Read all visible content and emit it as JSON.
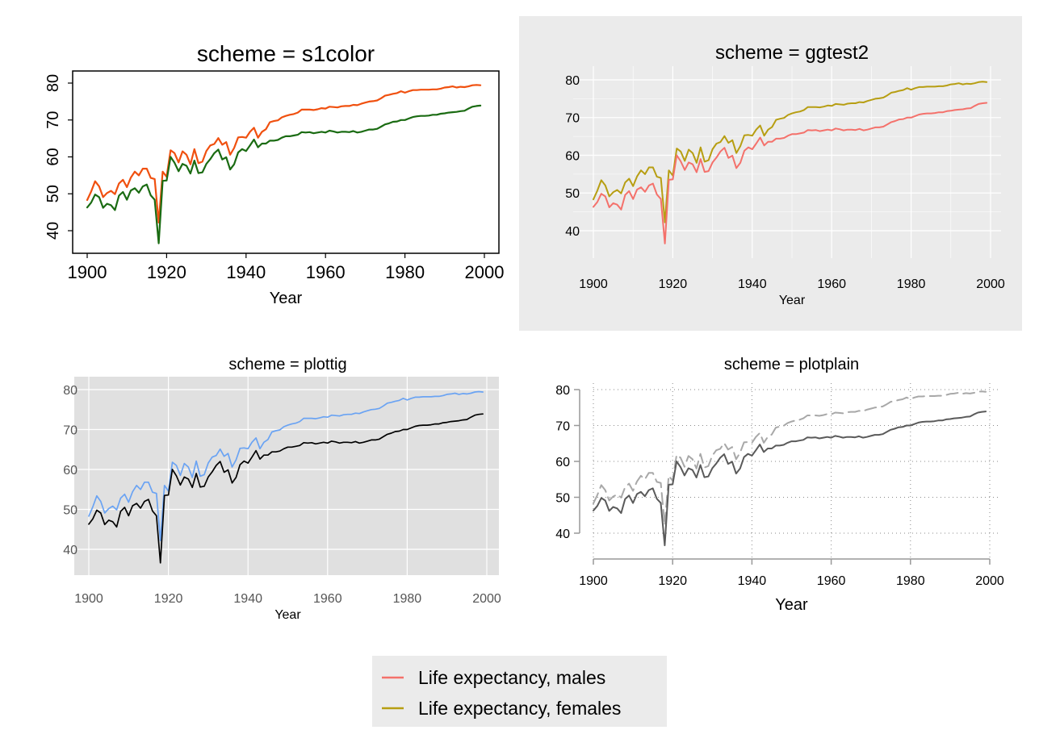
{
  "chart_data": [
    {
      "type": "line",
      "scheme": "s1color",
      "title": "scheme = s1color",
      "xlabel": "Year",
      "ylabel": "",
      "xlim": [
        1900,
        2000
      ],
      "ylim": [
        36,
        80
      ],
      "xticks": [
        1900,
        1920,
        1940,
        1960,
        1980,
        2000
      ],
      "yticks": [
        40,
        50,
        60,
        70,
        80
      ],
      "ytick_orientation": "vertical",
      "grid": false,
      "colors": {
        "males": "#1a6b12",
        "females": "#f0500f",
        "frame": "#000000",
        "background": "#ffffff",
        "text": "#000000"
      }
    },
    {
      "type": "line",
      "scheme": "ggtest2",
      "title": "scheme = ggtest2",
      "xlabel": "Year",
      "ylabel": "",
      "xlim": [
        1900,
        2000
      ],
      "ylim": [
        36,
        80
      ],
      "xticks": [
        1900,
        1920,
        1940,
        1960,
        1980,
        2000
      ],
      "yticks": [
        40,
        50,
        60,
        70,
        80
      ],
      "ytick_orientation": "horizontal",
      "grid": true,
      "colors": {
        "males": "#f4716b",
        "females": "#b79e12",
        "outer_background": "#ebebeb",
        "plot_background": "#ebebeb",
        "grid": "#ffffff",
        "text": "#000000"
      }
    },
    {
      "type": "line",
      "scheme": "plottig",
      "title": "scheme = plottig",
      "xlabel": "Year",
      "ylabel": "",
      "xlim": [
        1900,
        2000
      ],
      "ylim": [
        36,
        80
      ],
      "xticks": [
        1900,
        1920,
        1940,
        1960,
        1980,
        2000
      ],
      "yticks": [
        40,
        50,
        60,
        70,
        80
      ],
      "ytick_orientation": "horizontal",
      "grid": true,
      "colors": {
        "males": "#000000",
        "females": "#6aa3f3",
        "plot_background": "#e0e0e0",
        "grid": "#ffffff",
        "text": "#555555"
      }
    },
    {
      "type": "line",
      "scheme": "plotplain",
      "title": "scheme = plotplain",
      "xlabel": "Year",
      "ylabel": "",
      "xlim": [
        1900,
        2000
      ],
      "ylim": [
        36,
        80
      ],
      "xticks": [
        1900,
        1920,
        1940,
        1960,
        1980,
        2000
      ],
      "yticks": [
        40,
        50,
        60,
        70,
        80
      ],
      "ytick_orientation": "horizontal",
      "grid": "dotted",
      "colors": {
        "males": "#5a5a5a",
        "females": "#a8a8a8",
        "axis": "#999999",
        "text": "#000000"
      },
      "line_styles": {
        "males": "solid",
        "females": "dashed"
      }
    }
  ],
  "series": [
    {
      "key": "males",
      "name": "Life expectancy, males",
      "x_start": 1900,
      "values": [
        46.3,
        47.6,
        49.8,
        49.1,
        46.2,
        47.3,
        46.9,
        45.6,
        49.5,
        50.5,
        48.4,
        50.9,
        51.5,
        50.3,
        52.0,
        52.5,
        49.6,
        48.4,
        36.6,
        53.5,
        53.6,
        60.0,
        58.4,
        56.1,
        58.1,
        57.6,
        55.5,
        59.0,
        55.6,
        55.8,
        58.1,
        59.4,
        61.0,
        62.0,
        59.3,
        59.9,
        56.6,
        58.0,
        61.2,
        62.1,
        61.6,
        63.1,
        64.7,
        62.6,
        63.6,
        63.6,
        64.4,
        64.4,
        64.6,
        65.2,
        65.6,
        65.6,
        65.8,
        66.0,
        66.7,
        66.6,
        66.7,
        66.4,
        66.6,
        66.8,
        66.6,
        67.1,
        66.9,
        66.6,
        66.8,
        66.8,
        66.7,
        67.0,
        66.6,
        66.8,
        67.1,
        67.4,
        67.4,
        67.6,
        68.2,
        68.8,
        69.1,
        69.5,
        69.6,
        70.0,
        70.0,
        70.4,
        70.8,
        71.0,
        71.1,
        71.1,
        71.2,
        71.4,
        71.4,
        71.7,
        71.8,
        72.0,
        72.1,
        72.2,
        72.4,
        72.5,
        73.1,
        73.6,
        73.8,
        73.9
      ]
    },
    {
      "key": "females",
      "name": "Life expectancy, females",
      "x_start": 1900,
      "values": [
        48.3,
        50.6,
        53.4,
        52.0,
        49.1,
        50.2,
        50.8,
        49.9,
        52.8,
        53.8,
        51.8,
        54.4,
        56.0,
        55.0,
        56.8,
        56.8,
        54.3,
        54.0,
        42.2,
        56.0,
        54.6,
        61.8,
        61.0,
        58.5,
        61.5,
        60.6,
        58.0,
        62.1,
        58.3,
        58.7,
        61.6,
        63.1,
        63.5,
        65.1,
        63.3,
        64.0,
        60.6,
        62.4,
        65.3,
        65.4,
        65.2,
        66.8,
        67.9,
        65.2,
        66.8,
        67.5,
        69.4,
        69.7,
        69.9,
        70.7,
        71.1,
        71.4,
        71.6,
        72.0,
        72.8,
        72.8,
        72.8,
        72.7,
        72.9,
        73.2,
        73.1,
        73.6,
        73.5,
        73.4,
        73.7,
        73.8,
        73.8,
        74.1,
        74.0,
        74.4,
        74.7,
        75.0,
        75.1,
        75.3,
        75.9,
        76.6,
        76.8,
        77.1,
        77.3,
        77.8,
        77.4,
        77.8,
        78.1,
        78.1,
        78.2,
        78.2,
        78.2,
        78.3,
        78.3,
        78.5,
        78.8,
        78.9,
        79.1,
        78.8,
        79.0,
        78.9,
        79.1,
        79.4,
        79.5,
        79.4
      ]
    }
  ],
  "legend": {
    "items": [
      {
        "label": "Life expectancy, males",
        "color": "#f4716b"
      },
      {
        "label": "Life expectancy, females",
        "color": "#b79e12"
      }
    ],
    "background": "#ebebeb"
  }
}
